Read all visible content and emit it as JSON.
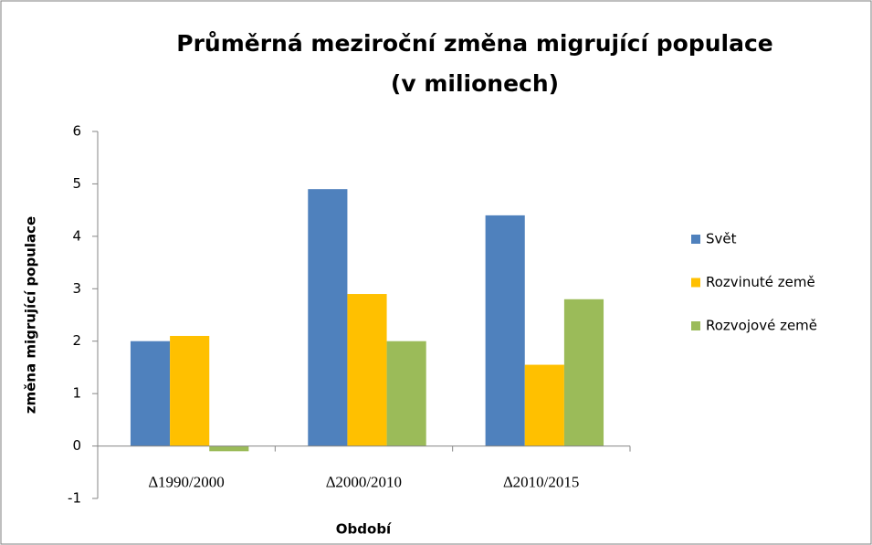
{
  "chart_data": {
    "type": "bar",
    "title": [
      "Průměrná meziroční změna migrující populace",
      "(v milionech)"
    ],
    "x_label": "Období",
    "y_label": "změna migrující populace",
    "categories": [
      "∆1990/2000",
      "∆2000/2010",
      "∆2010/2015"
    ],
    "series": [
      {
        "name": "Svět",
        "color": "#4f81bd",
        "values": [
          2.0,
          4.9,
          4.4
        ]
      },
      {
        "name": "Rozvinuté země",
        "color": "#ffc000",
        "values": [
          2.1,
          2.9,
          1.55
        ]
      },
      {
        "name": "Rozvojové země",
        "color": "#9bbb59",
        "values": [
          -0.1,
          2.0,
          2.8
        ]
      }
    ],
    "ylim": [
      -1,
      6
    ],
    "yticks": [
      -1,
      0,
      1,
      2,
      3,
      4,
      5,
      6
    ],
    "grid": false,
    "legend": "right"
  }
}
